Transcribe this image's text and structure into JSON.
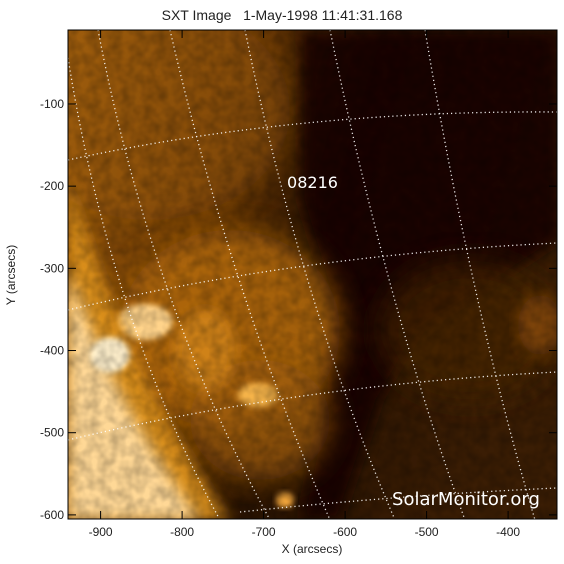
{
  "title": "SXT Image   1-May-1998 11:41:31.168",
  "x_axis": {
    "label": "X (arcsecs)",
    "range": [
      -940,
      -340
    ],
    "ticks": [
      -900,
      -800,
      -700,
      -600,
      -500,
      -400
    ],
    "tick_labels": [
      "-900",
      "-800",
      "-700",
      "-600",
      "-500",
      "-400"
    ]
  },
  "y_axis": {
    "label": "Y (arcsecs)",
    "range": [
      -605,
      -10
    ],
    "ticks": [
      -100,
      -200,
      -300,
      -400,
      -500,
      -600
    ],
    "tick_labels": [
      "-100",
      "-200",
      "-300",
      "-400",
      "-500",
      "-600"
    ]
  },
  "region_label": {
    "text": "08216",
    "x": -640,
    "y": -195
  },
  "watermark": "SolarMonitor.org",
  "colors": {
    "dark": "#140700",
    "mid": "#6a3805",
    "bright": "#d48010",
    "limb": "#ffe2a8",
    "grid": "#ffffff",
    "frame": "#000000"
  },
  "grid": "heliographic-dotted"
}
